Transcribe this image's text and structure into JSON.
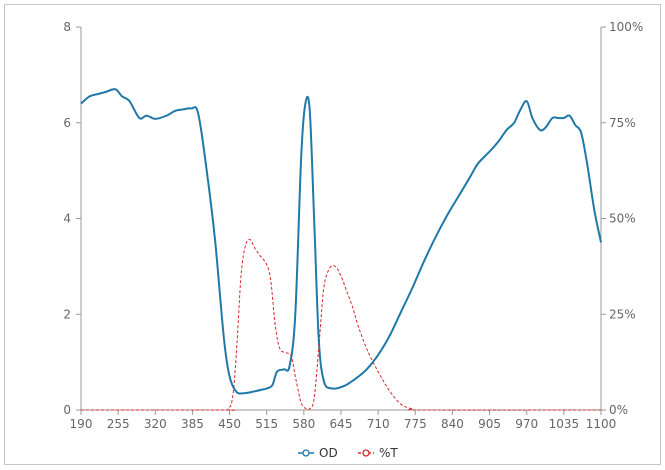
{
  "chart_data": {
    "type": "line",
    "x_axis": {
      "min": 190,
      "max": 1100,
      "ticks": [
        190,
        255,
        320,
        385,
        450,
        515,
        580,
        645,
        710,
        775,
        840,
        905,
        970,
        1035,
        1100
      ]
    },
    "y_left": {
      "min": 0,
      "max": 8,
      "ticks": [
        0,
        2,
        4,
        6,
        8
      ]
    },
    "y_right": {
      "min": 0,
      "max": 100,
      "ticks": [
        0,
        25,
        50,
        75,
        100
      ],
      "tick_labels": [
        "0%",
        "25%",
        "50%",
        "75%",
        "100%"
      ]
    },
    "series": [
      {
        "name": "OD",
        "axis": "left",
        "color": "#1f78a8",
        "style": "solid",
        "points": [
          [
            190,
            6.4
          ],
          [
            205,
            6.55
          ],
          [
            220,
            6.6
          ],
          [
            235,
            6.65
          ],
          [
            250,
            6.7
          ],
          [
            262,
            6.55
          ],
          [
            275,
            6.45
          ],
          [
            292,
            6.1
          ],
          [
            305,
            6.15
          ],
          [
            320,
            6.08
          ],
          [
            340,
            6.15
          ],
          [
            355,
            6.25
          ],
          [
            370,
            6.28
          ],
          [
            383,
            6.3
          ],
          [
            395,
            6.2
          ],
          [
            410,
            5.0
          ],
          [
            425,
            3.5
          ],
          [
            440,
            1.5
          ],
          [
            450,
            0.7
          ],
          [
            462,
            0.38
          ],
          [
            475,
            0.35
          ],
          [
            490,
            0.38
          ],
          [
            505,
            0.42
          ],
          [
            515,
            0.45
          ],
          [
            525,
            0.52
          ],
          [
            533,
            0.8
          ],
          [
            545,
            0.85
          ],
          [
            555,
            0.92
          ],
          [
            565,
            2.0
          ],
          [
            575,
            5.2
          ],
          [
            582,
            6.35
          ],
          [
            590,
            6.3
          ],
          [
            598,
            4.0
          ],
          [
            606,
            1.5
          ],
          [
            615,
            0.6
          ],
          [
            630,
            0.45
          ],
          [
            650,
            0.5
          ],
          [
            670,
            0.65
          ],
          [
            690,
            0.85
          ],
          [
            710,
            1.15
          ],
          [
            730,
            1.55
          ],
          [
            750,
            2.05
          ],
          [
            770,
            2.55
          ],
          [
            790,
            3.1
          ],
          [
            810,
            3.6
          ],
          [
            830,
            4.05
          ],
          [
            850,
            4.45
          ],
          [
            870,
            4.85
          ],
          [
            885,
            5.15
          ],
          [
            905,
            5.4
          ],
          [
            920,
            5.6
          ],
          [
            935,
            5.85
          ],
          [
            948,
            6.0
          ],
          [
            958,
            6.25
          ],
          [
            970,
            6.45
          ],
          [
            980,
            6.1
          ],
          [
            993,
            5.85
          ],
          [
            1003,
            5.9
          ],
          [
            1015,
            6.1
          ],
          [
            1025,
            6.1
          ],
          [
            1035,
            6.1
          ],
          [
            1045,
            6.15
          ],
          [
            1055,
            5.95
          ],
          [
            1065,
            5.8
          ],
          [
            1075,
            5.2
          ],
          [
            1088,
            4.2
          ],
          [
            1100,
            3.5
          ]
        ]
      },
      {
        "name": "%T",
        "axis": "right",
        "color": "#d62728",
        "style": "dashed",
        "points": [
          [
            190,
            0
          ],
          [
            440,
            0
          ],
          [
            447,
            0.2
          ],
          [
            455,
            3
          ],
          [
            462,
            15
          ],
          [
            470,
            35
          ],
          [
            478,
            43
          ],
          [
            486,
            44.5
          ],
          [
            495,
            42
          ],
          [
            505,
            40
          ],
          [
            515,
            38
          ],
          [
            522,
            34
          ],
          [
            530,
            22
          ],
          [
            538,
            16
          ],
          [
            548,
            15
          ],
          [
            558,
            14
          ],
          [
            566,
            8
          ],
          [
            575,
            2
          ],
          [
            582,
            0.5
          ],
          [
            590,
            0.3
          ],
          [
            598,
            3
          ],
          [
            607,
            18
          ],
          [
            615,
            32
          ],
          [
            625,
            37
          ],
          [
            635,
            37.5
          ],
          [
            645,
            35
          ],
          [
            655,
            31
          ],
          [
            665,
            27
          ],
          [
            675,
            22
          ],
          [
            690,
            16
          ],
          [
            710,
            10
          ],
          [
            730,
            5
          ],
          [
            750,
            1.5
          ],
          [
            770,
            0.3
          ],
          [
            790,
            0
          ],
          [
            1100,
            0
          ]
        ]
      }
    ],
    "legend": {
      "position": "bottom-center",
      "items": [
        "OD",
        "%T"
      ]
    },
    "grid": false
  }
}
